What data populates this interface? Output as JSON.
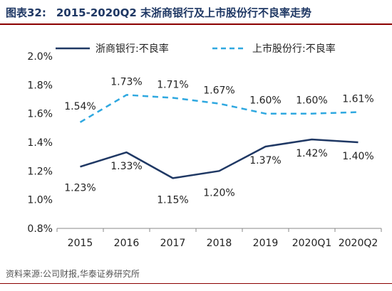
{
  "header": {
    "figure_label": "图表32:",
    "figure_title": "2015-2020Q2 末浙商银行及上市股份行不良率走势"
  },
  "footer": {
    "source": "资料来源:公司财报,华泰证券研究所"
  },
  "colors": {
    "title": "#1f3864",
    "rule": "#8b0000",
    "series_solid": "#1f3864",
    "series_dashed": "#2fa8e0"
  },
  "chart_data": {
    "type": "line",
    "categories": [
      "2015",
      "2016",
      "2017",
      "2018",
      "2019",
      "2020Q1",
      "2020Q2"
    ],
    "series": [
      {
        "name": "浙商银行:不良率",
        "values": [
          1.23,
          1.33,
          1.15,
          1.2,
          1.37,
          1.42,
          1.4
        ],
        "labels": [
          "1.23%",
          "1.33%",
          "1.15%",
          "1.20%",
          "1.37%",
          "1.42%",
          "1.40%"
        ],
        "style": "solid",
        "color": "#1f3864"
      },
      {
        "name": "上市股份行:不良率",
        "values": [
          1.54,
          1.73,
          1.71,
          1.67,
          1.6,
          1.6,
          1.61
        ],
        "labels": [
          "1.54%",
          "1.73%",
          "1.71%",
          "1.67%",
          "1.60%",
          "1.60%",
          "1.61%"
        ],
        "style": "dashed",
        "color": "#2fa8e0"
      }
    ],
    "y_ticks": [
      "0.8%",
      "1.0%",
      "1.2%",
      "1.4%",
      "1.6%",
      "1.8%",
      "2.0%"
    ],
    "ylim": [
      0.8,
      2.0
    ],
    "grid": false,
    "legend_position": "top"
  }
}
